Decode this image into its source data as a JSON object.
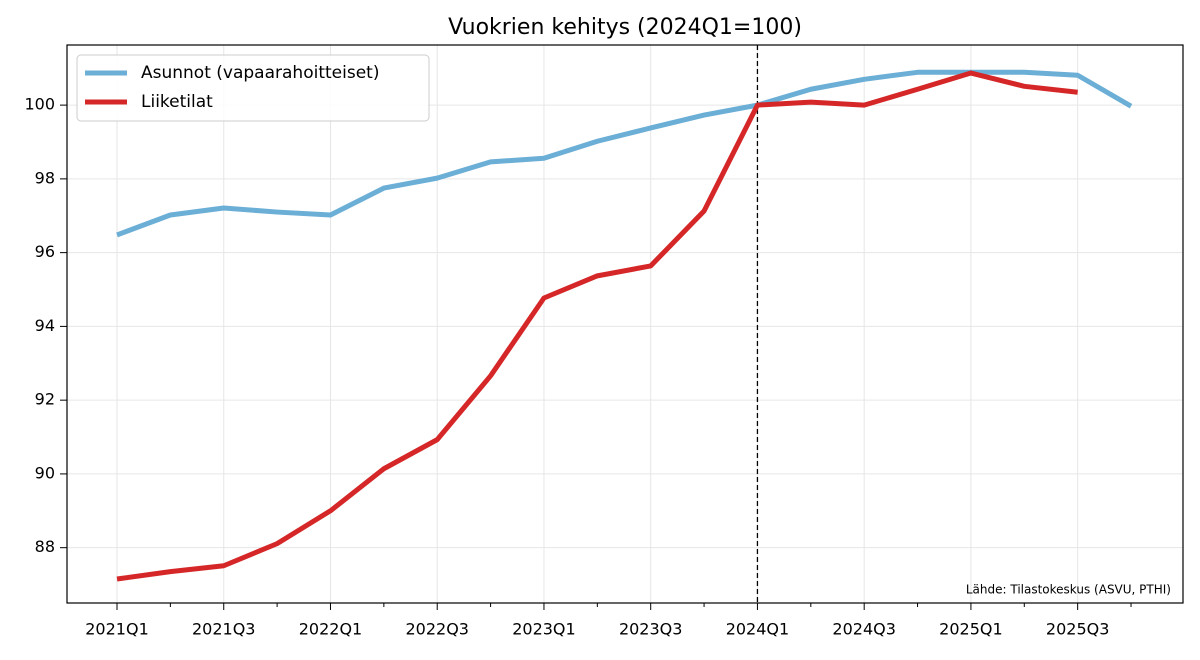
{
  "chart_data": {
    "type": "line",
    "title": "Vuokrien kehitys (2024Q1=100)",
    "categories": [
      "2021Q1",
      null,
      "2021Q3",
      null,
      "2022Q1",
      null,
      "2022Q3",
      null,
      "2023Q1",
      null,
      "2023Q3",
      null,
      "2024Q1",
      null,
      "2024Q3",
      null,
      "2025Q1",
      null,
      "2025Q3",
      null
    ],
    "series": [
      {
        "name": "Asunnot (vapaarahoitteiset)",
        "color": "#6baed6",
        "values": [
          96.48,
          97.02,
          97.21,
          97.1,
          97.02,
          97.75,
          98.02,
          98.46,
          98.56,
          99.02,
          99.38,
          99.73,
          100,
          100.43,
          100.7,
          100.89,
          100.89,
          100.89,
          100.81,
          99.97
        ]
      },
      {
        "name": "Liiketilat",
        "color": "#d62728",
        "values": [
          87.15,
          87.35,
          87.51,
          88.11,
          89.0,
          90.14,
          90.93,
          92.66,
          94.77,
          95.37,
          95.64,
          97.13,
          100,
          100.08,
          100,
          100.43,
          100.87,
          100.51,
          100.35,
          null
        ]
      }
    ],
    "ylim": [
      86.5,
      101.63
    ],
    "yticks": [
      88,
      90,
      92,
      94,
      96,
      98,
      100
    ],
    "grid": true,
    "legend": "upper left",
    "vline": "2024Q1",
    "annotation": "Lähde: Tilastokeskus (ASVU, PTHI)"
  }
}
